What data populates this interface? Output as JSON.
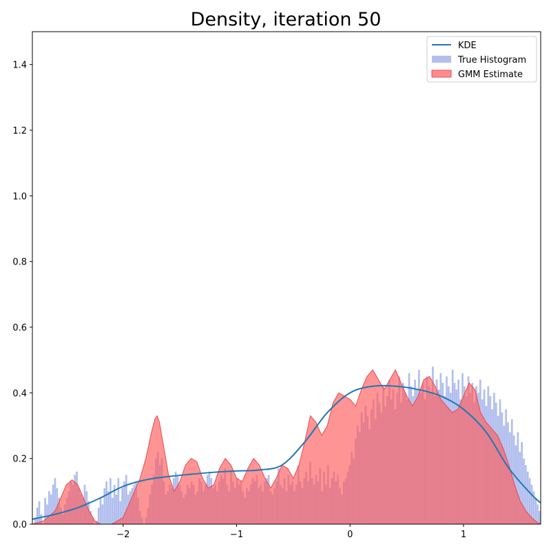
{
  "chart_data": {
    "type": "area",
    "title": "Density, iteration 50",
    "xlabel": "",
    "ylabel": "",
    "xlim": [
      -2.8,
      1.68
    ],
    "ylim": [
      0,
      1.5
    ],
    "x_ticks": [
      -2,
      -1,
      0,
      1
    ],
    "x_tick_labels": [
      "−2",
      "−1",
      "0",
      "1"
    ],
    "y_ticks": [
      0.0,
      0.2,
      0.4,
      0.6,
      0.8,
      1.0,
      1.2,
      1.4
    ],
    "y_tick_labels": [
      "0.0",
      "0.2",
      "0.4",
      "0.6",
      "0.8",
      "1.0",
      "1.2",
      "1.4"
    ],
    "grid": false,
    "legend_position": "top-right",
    "legend": [
      {
        "label": "KDE",
        "kind": "line",
        "color": "#1f77b4"
      },
      {
        "label": "True Histogram",
        "kind": "patch",
        "color": "#aab8ec"
      },
      {
        "label": "GMM Estimate",
        "kind": "patch",
        "color": "#ff8080"
      }
    ],
    "series": [
      {
        "name": "KDE",
        "kind": "line",
        "color": "#1f77b4",
        "x": [
          -2.8,
          -2.6,
          -2.4,
          -2.2,
          -2.0,
          -1.8,
          -1.6,
          -1.4,
          -1.2,
          -1.0,
          -0.8,
          -0.6,
          -0.4,
          -0.2,
          0.0,
          0.2,
          0.4,
          0.6,
          0.8,
          1.0,
          1.2,
          1.4,
          1.6,
          1.68
        ],
        "values": [
          0.015,
          0.03,
          0.05,
          0.08,
          0.115,
          0.135,
          0.145,
          0.152,
          0.158,
          0.162,
          0.165,
          0.18,
          0.25,
          0.34,
          0.4,
          0.42,
          0.42,
          0.41,
          0.39,
          0.35,
          0.28,
          0.17,
          0.09,
          0.065
        ]
      },
      {
        "name": "True Histogram",
        "kind": "histogram",
        "color": "#aab8ec",
        "bin_range": [
          -2.8,
          1.68
        ],
        "values": [
          0.0,
          0.02,
          0.05,
          0.07,
          0.03,
          0.0,
          0.08,
          0.06,
          0.1,
          0.09,
          0.12,
          0.14,
          0.11,
          0.08,
          0.05,
          0.03,
          0.06,
          0.08,
          0.1,
          0.13,
          0.12,
          0.15,
          0.16,
          0.11,
          0.09,
          0.08,
          0.12,
          0.1,
          0.07,
          0.04,
          0.02,
          0.0,
          0.01,
          0.05,
          0.08,
          0.06,
          0.11,
          0.13,
          0.1,
          0.14,
          0.08,
          0.12,
          0.09,
          0.14,
          0.07,
          0.11,
          0.13,
          0.15,
          0.09,
          0.1,
          0.11,
          0.12,
          0.13,
          0.08,
          0.04,
          0.02,
          0.0,
          0.02,
          0.05,
          0.09,
          0.12,
          0.15,
          0.2,
          0.22,
          0.18,
          0.2,
          0.13,
          0.09,
          0.1,
          0.12,
          0.11,
          0.14,
          0.16,
          0.15,
          0.12,
          0.1,
          0.08,
          0.09,
          0.12,
          0.11,
          0.13,
          0.12,
          0.09,
          0.1,
          0.14,
          0.13,
          0.1,
          0.12,
          0.15,
          0.16,
          0.14,
          0.11,
          0.12,
          0.1,
          0.13,
          0.15,
          0.14,
          0.17,
          0.12,
          0.1,
          0.16,
          0.13,
          0.11,
          0.14,
          0.12,
          0.13,
          0.1,
          0.08,
          0.11,
          0.1,
          0.12,
          0.14,
          0.13,
          0.15,
          0.11,
          0.12,
          0.1,
          0.13,
          0.14,
          0.15,
          0.1,
          0.09,
          0.11,
          0.13,
          0.17,
          0.12,
          0.11,
          0.14,
          0.1,
          0.15,
          0.12,
          0.13,
          0.1,
          0.12,
          0.18,
          0.13,
          0.11,
          0.14,
          0.16,
          0.13,
          0.19,
          0.14,
          0.12,
          0.15,
          0.13,
          0.17,
          0.1,
          0.16,
          0.12,
          0.18,
          0.11,
          0.14,
          0.16,
          0.13,
          0.15,
          0.11,
          0.09,
          0.13,
          0.14,
          0.16,
          0.18,
          0.22,
          0.2,
          0.26,
          0.3,
          0.28,
          0.34,
          0.31,
          0.36,
          0.33,
          0.29,
          0.35,
          0.38,
          0.32,
          0.4,
          0.37,
          0.34,
          0.42,
          0.36,
          0.39,
          0.44,
          0.38,
          0.41,
          0.35,
          0.4,
          0.45,
          0.37,
          0.43,
          0.4,
          0.38,
          0.46,
          0.42,
          0.39,
          0.44,
          0.41,
          0.47,
          0.4,
          0.43,
          0.38,
          0.45,
          0.42,
          0.4,
          0.48,
          0.39,
          0.44,
          0.41,
          0.46,
          0.43,
          0.39,
          0.45,
          0.42,
          0.4,
          0.47,
          0.43,
          0.41,
          0.44,
          0.38,
          0.46,
          0.42,
          0.39,
          0.45,
          0.4,
          0.43,
          0.37,
          0.42,
          0.4,
          0.44,
          0.38,
          0.41,
          0.36,
          0.42,
          0.39,
          0.35,
          0.4,
          0.37,
          0.33,
          0.38,
          0.34,
          0.3,
          0.35,
          0.31,
          0.28,
          0.32,
          0.27,
          0.24,
          0.28,
          0.22,
          0.25,
          0.2,
          0.18,
          0.16,
          0.14,
          0.12,
          0.1,
          0.08,
          0.06,
          0.04
        ]
      },
      {
        "name": "GMM Estimate",
        "kind": "area",
        "color": "#ff5a5a",
        "x": [
          -2.8,
          -2.7,
          -2.6,
          -2.55,
          -2.5,
          -2.45,
          -2.4,
          -2.35,
          -2.3,
          -2.25,
          -2.2,
          -2.1,
          -2.0,
          -1.95,
          -1.9,
          -1.85,
          -1.8,
          -1.75,
          -1.72,
          -1.7,
          -1.68,
          -1.65,
          -1.6,
          -1.55,
          -1.5,
          -1.45,
          -1.4,
          -1.35,
          -1.3,
          -1.25,
          -1.2,
          -1.15,
          -1.1,
          -1.05,
          -1.0,
          -0.95,
          -0.9,
          -0.85,
          -0.8,
          -0.75,
          -0.7,
          -0.65,
          -0.6,
          -0.55,
          -0.5,
          -0.45,
          -0.4,
          -0.35,
          -0.3,
          -0.25,
          -0.2,
          -0.15,
          -0.1,
          -0.05,
          0.0,
          0.05,
          0.1,
          0.15,
          0.2,
          0.25,
          0.3,
          0.35,
          0.4,
          0.45,
          0.5,
          0.55,
          0.6,
          0.65,
          0.7,
          0.75,
          0.8,
          0.85,
          0.9,
          0.95,
          1.0,
          1.05,
          1.1,
          1.15,
          1.2,
          1.25,
          1.3,
          1.35,
          1.4,
          1.45,
          1.5,
          1.55,
          1.6,
          1.65,
          1.68
        ],
        "values": [
          0.0,
          0.01,
          0.04,
          0.08,
          0.12,
          0.135,
          0.12,
          0.08,
          0.04,
          0.01,
          0.0,
          0.0,
          0.02,
          0.06,
          0.1,
          0.14,
          0.2,
          0.28,
          0.32,
          0.33,
          0.31,
          0.25,
          0.15,
          0.1,
          0.13,
          0.18,
          0.2,
          0.19,
          0.14,
          0.11,
          0.12,
          0.17,
          0.2,
          0.18,
          0.14,
          0.13,
          0.17,
          0.2,
          0.18,
          0.14,
          0.11,
          0.14,
          0.18,
          0.17,
          0.14,
          0.18,
          0.25,
          0.33,
          0.31,
          0.27,
          0.3,
          0.37,
          0.4,
          0.39,
          0.38,
          0.36,
          0.41,
          0.45,
          0.47,
          0.44,
          0.41,
          0.44,
          0.47,
          0.43,
          0.39,
          0.36,
          0.39,
          0.44,
          0.45,
          0.42,
          0.38,
          0.36,
          0.34,
          0.35,
          0.39,
          0.43,
          0.41,
          0.34,
          0.31,
          0.29,
          0.27,
          0.23,
          0.18,
          0.12,
          0.07,
          0.04,
          0.02,
          0.005,
          0.0
        ]
      }
    ]
  }
}
